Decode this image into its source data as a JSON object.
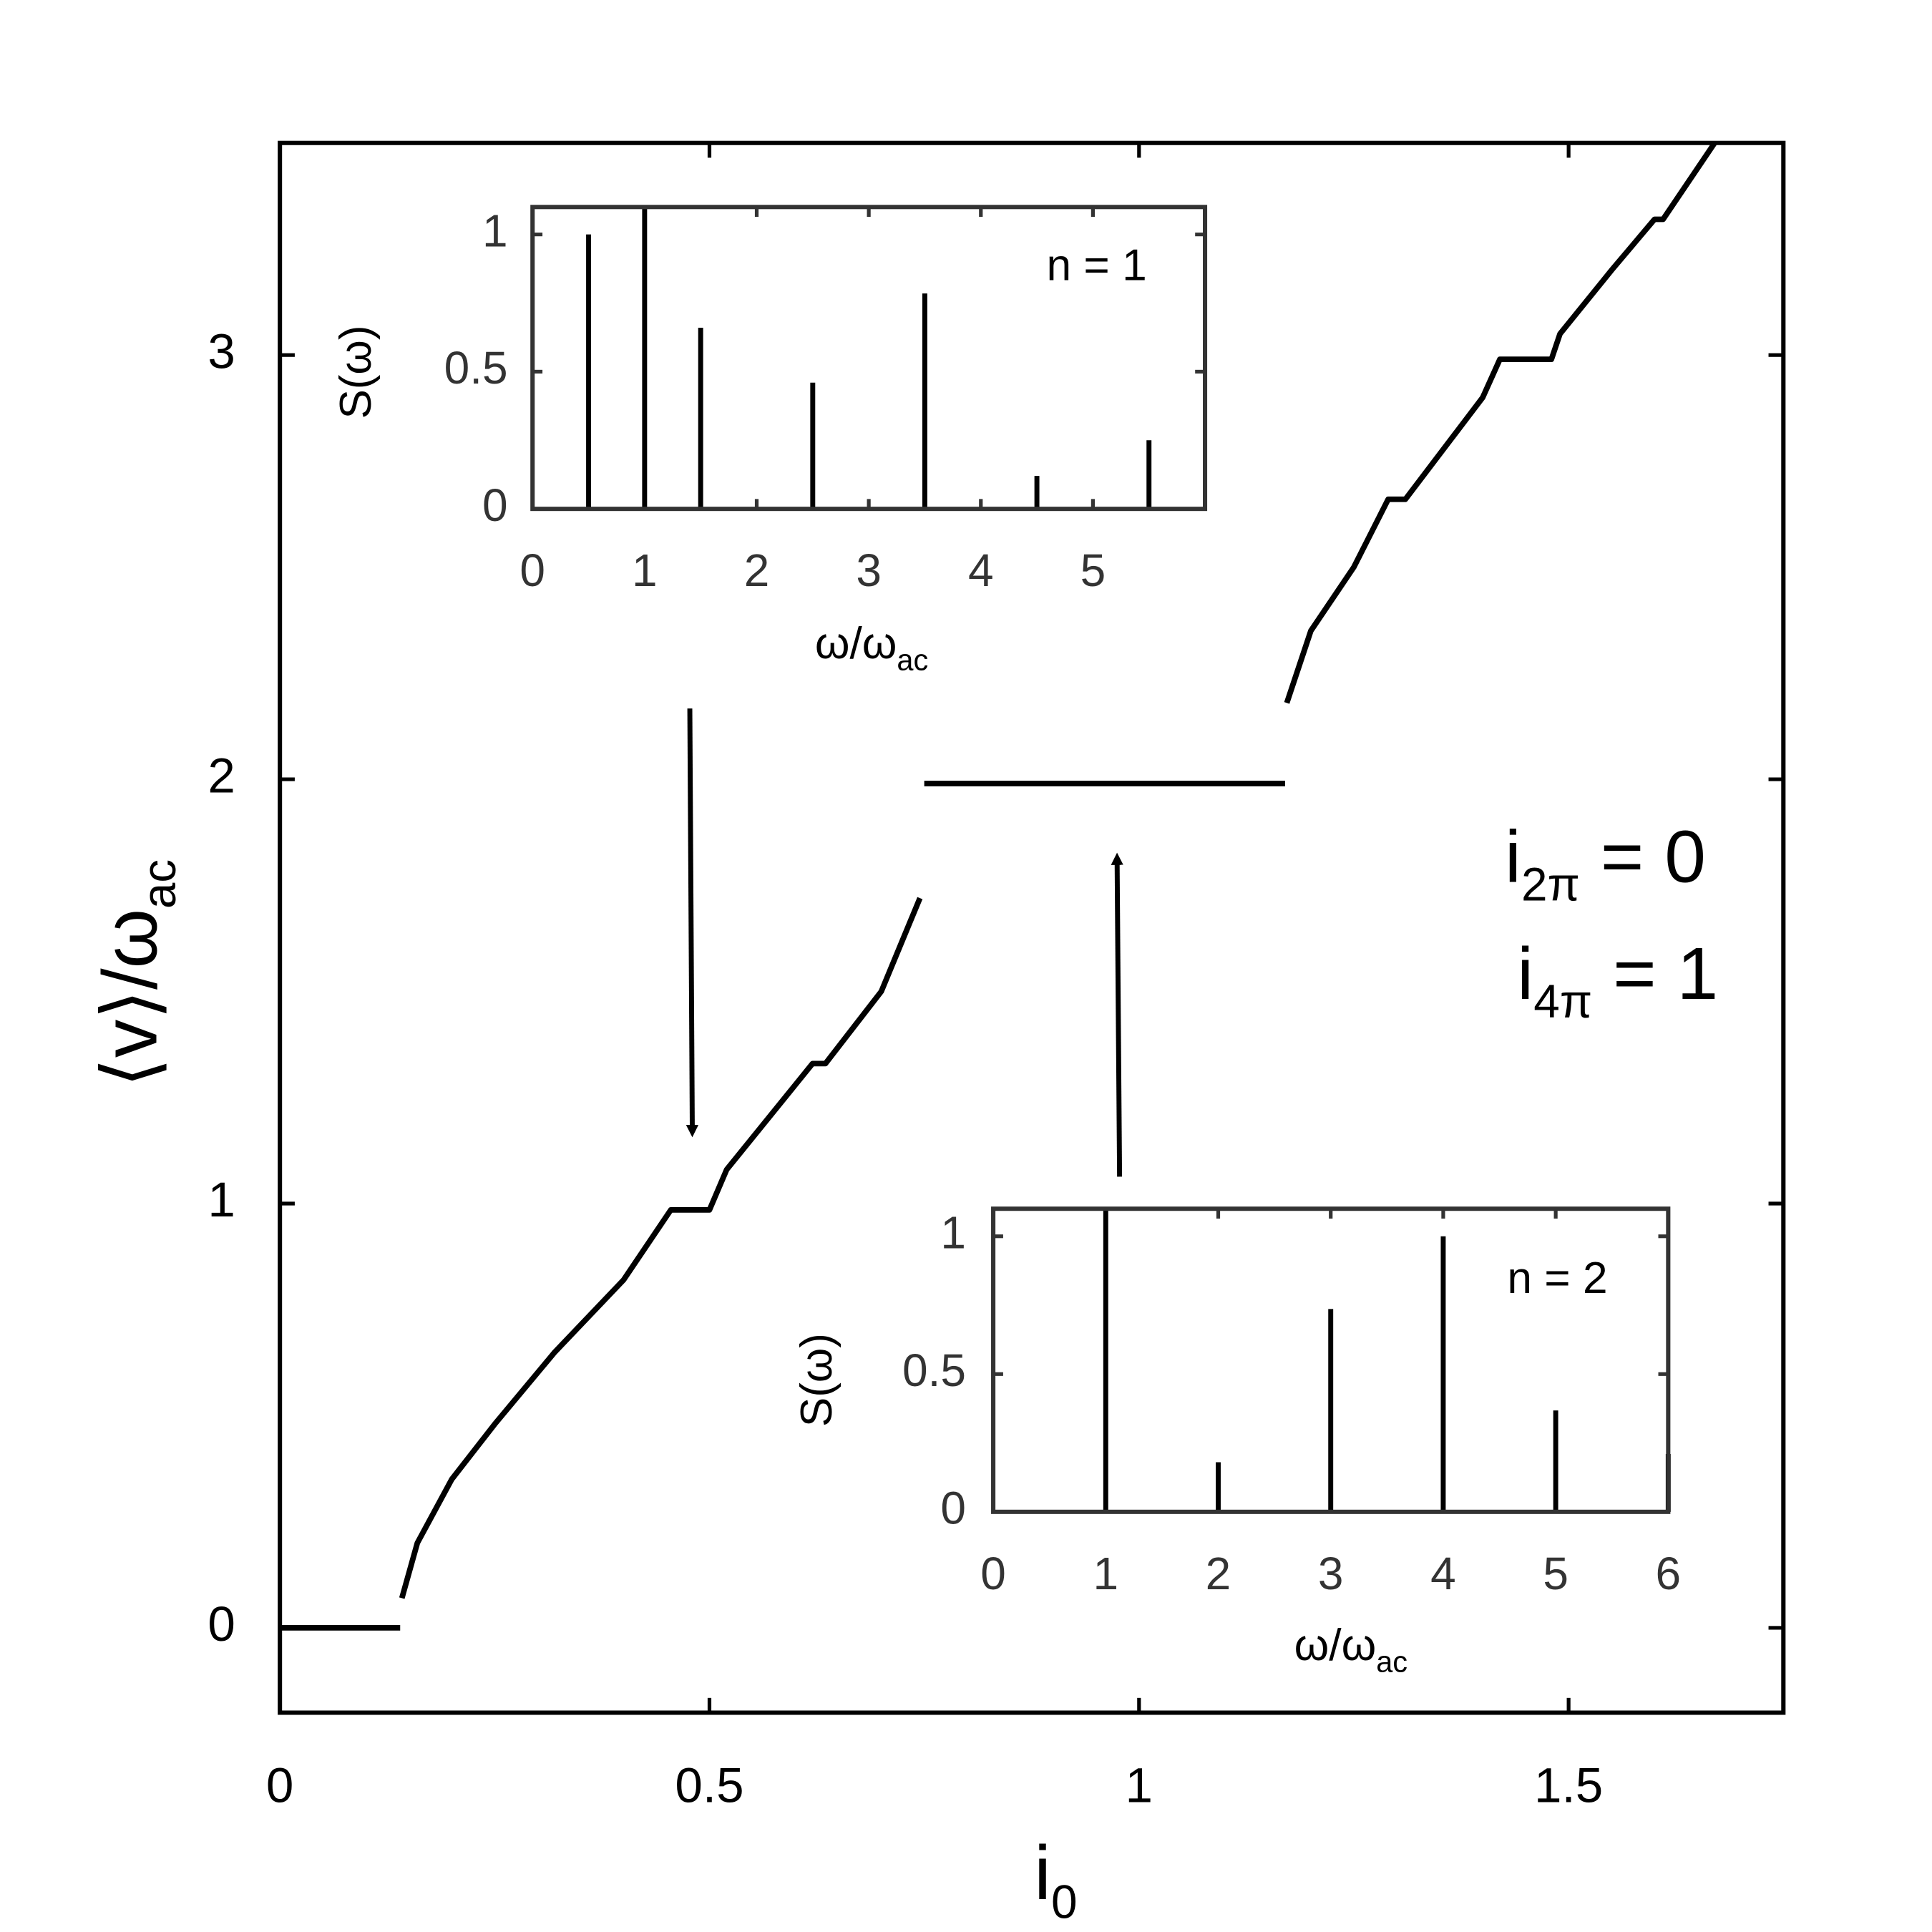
{
  "chart_data": [
    {
      "type": "line",
      "xlabel": [
        "i",
        "0"
      ],
      "ylabel": [
        "⟨v⟩/ω",
        "ac"
      ],
      "xlim": [
        0,
        1.75
      ],
      "ylim": [
        -0.2,
        3.5
      ],
      "xticks": [
        0,
        0.5,
        1,
        1.5
      ],
      "yticks": [
        0,
        1,
        2,
        3
      ],
      "annotations": [
        [
          "i",
          "2π",
          " = 0"
        ],
        [
          "i",
          "4π",
          " = 1"
        ]
      ],
      "series": [
        {
          "color": "#000000",
          "x": [
            0,
            0.14,
            0.141,
            0.142,
            0.16,
            0.2,
            0.25,
            0.32,
            0.4,
            0.455,
            0.5,
            0.52,
            0.6,
            0.62,
            0.635,
            0.7,
            0.745,
            0.748,
            0.75,
            1.17,
            1.171,
            1.172,
            1.2,
            1.25,
            1.29,
            1.31,
            1.4,
            1.42,
            1.48,
            1.49,
            1.55,
            1.6,
            1.61,
            1.67
          ],
          "values": [
            0,
            0,
            null,
            0.07,
            0.2,
            0.35,
            0.48,
            0.65,
            0.82,
            0.985,
            0.985,
            1.08,
            1.28,
            1.33,
            1.33,
            1.5,
            1.72,
            null,
            1.99,
            1.99,
            null,
            2.18,
            2.35,
            2.5,
            2.66,
            2.66,
            2.9,
            2.99,
            2.99,
            3.05,
            3.2,
            3.32,
            3.32,
            3.5
          ]
        }
      ]
    },
    {
      "type": "stem",
      "xlabel": [
        "ω/ω",
        "ac"
      ],
      "ylabel": [
        "S(ω)"
      ],
      "xlim": [
        0,
        6
      ],
      "ylim": [
        0,
        1.1
      ],
      "xticks": [
        0,
        1,
        2,
        3,
        4,
        5
      ],
      "yticks": [
        0,
        0.5,
        1
      ],
      "annotations": [
        [
          "n = 1"
        ]
      ],
      "series": [
        {
          "color": "#000000",
          "x": [
            0.5,
            1,
            1.5,
            2.5,
            3.5,
            4.5,
            5.5
          ],
          "values": [
            1.0,
            1.1,
            0.66,
            0.46,
            0.785,
            0.12,
            0.25
          ]
        }
      ]
    },
    {
      "type": "stem",
      "xlabel": [
        "ω/ω",
        "ac"
      ],
      "ylabel": [
        "S(ω)"
      ],
      "xlim": [
        0,
        6
      ],
      "ylim": [
        0,
        1.1
      ],
      "xticks": [
        0,
        1,
        2,
        3,
        4,
        5,
        6
      ],
      "yticks": [
        0,
        0.5,
        1
      ],
      "annotations": [
        [
          "n = 2"
        ]
      ],
      "series": [
        {
          "color": "#000000",
          "x": [
            1,
            2,
            3,
            4,
            5,
            6
          ],
          "values": [
            1.1,
            0.18,
            0.736,
            1.0,
            0.368,
            0.21
          ]
        }
      ]
    }
  ]
}
